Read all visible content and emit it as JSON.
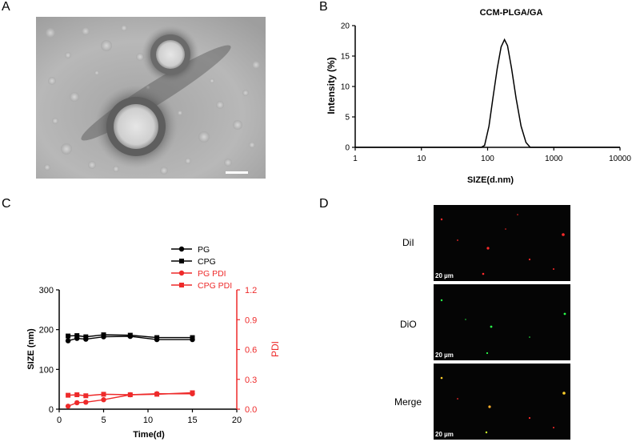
{
  "panels": {
    "a": {
      "letter": "A"
    },
    "b": {
      "letter": "B"
    },
    "c": {
      "letter": "C"
    },
    "d": {
      "letter": "D",
      "images": [
        {
          "label": "DiI",
          "scale": "20 µm",
          "color": "#ff2a2a"
        },
        {
          "label": "DiO",
          "scale": "20 µm",
          "color": "#2aff4a"
        },
        {
          "label": "Merge",
          "scale": "20 µm",
          "color": "#ffd02a"
        }
      ]
    }
  },
  "chart_data": [
    {
      "panel": "B",
      "type": "line",
      "title": "CCM-PLGA/GA",
      "xlabel": "SIZE(d.nm)",
      "ylabel": "Intensity (%)",
      "xscale": "log",
      "xlim": [
        1,
        10000
      ],
      "ylim": [
        0,
        20
      ],
      "xticks": [
        "1",
        "10",
        "100",
        "1000",
        "10000"
      ],
      "yticks": [
        "0",
        "5",
        "10",
        "15",
        "20"
      ],
      "color": "#000000",
      "x": [
        1,
        80,
        90,
        105,
        120,
        140,
        160,
        180,
        200,
        230,
        270,
        320,
        380,
        440,
        10000
      ],
      "y": [
        0,
        0,
        0.3,
        3.5,
        8,
        13,
        16.5,
        17.7,
        16.7,
        13,
        8,
        3.5,
        0.8,
        0,
        0
      ]
    },
    {
      "panel": "C",
      "type": "line",
      "xlabel": "Time(d)",
      "ylabel": "SIZE (nm)",
      "y2label": "PDI",
      "xlim": [
        0,
        20
      ],
      "ylim": [
        0,
        300
      ],
      "y2lim": [
        0,
        1.2
      ],
      "xticks": [
        "0",
        "5",
        "10",
        "15",
        "20"
      ],
      "yticks": [
        "0",
        "100",
        "200",
        "300"
      ],
      "y2ticks": [
        "0.0",
        "0.3",
        "0.6",
        "0.9",
        "1.2"
      ],
      "legend_position": "top-right",
      "x": [
        1,
        2,
        3,
        5,
        8,
        11,
        15
      ],
      "series": [
        {
          "name": "PG",
          "axis": "left",
          "marker": "circle",
          "color": "#000000",
          "values": [
            172,
            178,
            176,
            182,
            183,
            175,
            175
          ]
        },
        {
          "name": "CPG",
          "axis": "left",
          "marker": "square",
          "color": "#000000",
          "values": [
            184,
            185,
            182,
            187,
            186,
            180,
            180
          ]
        },
        {
          "name": "PG PDI",
          "axis": "right",
          "marker": "circle",
          "color": "#ee2a2a",
          "values": [
            0.03,
            0.065,
            0.07,
            0.095,
            0.145,
            0.155,
            0.155
          ]
        },
        {
          "name": "CPG PDI",
          "axis": "right",
          "marker": "square",
          "color": "#ee2a2a",
          "values": [
            0.14,
            0.145,
            0.135,
            0.15,
            0.145,
            0.15,
            0.165
          ]
        }
      ]
    }
  ]
}
